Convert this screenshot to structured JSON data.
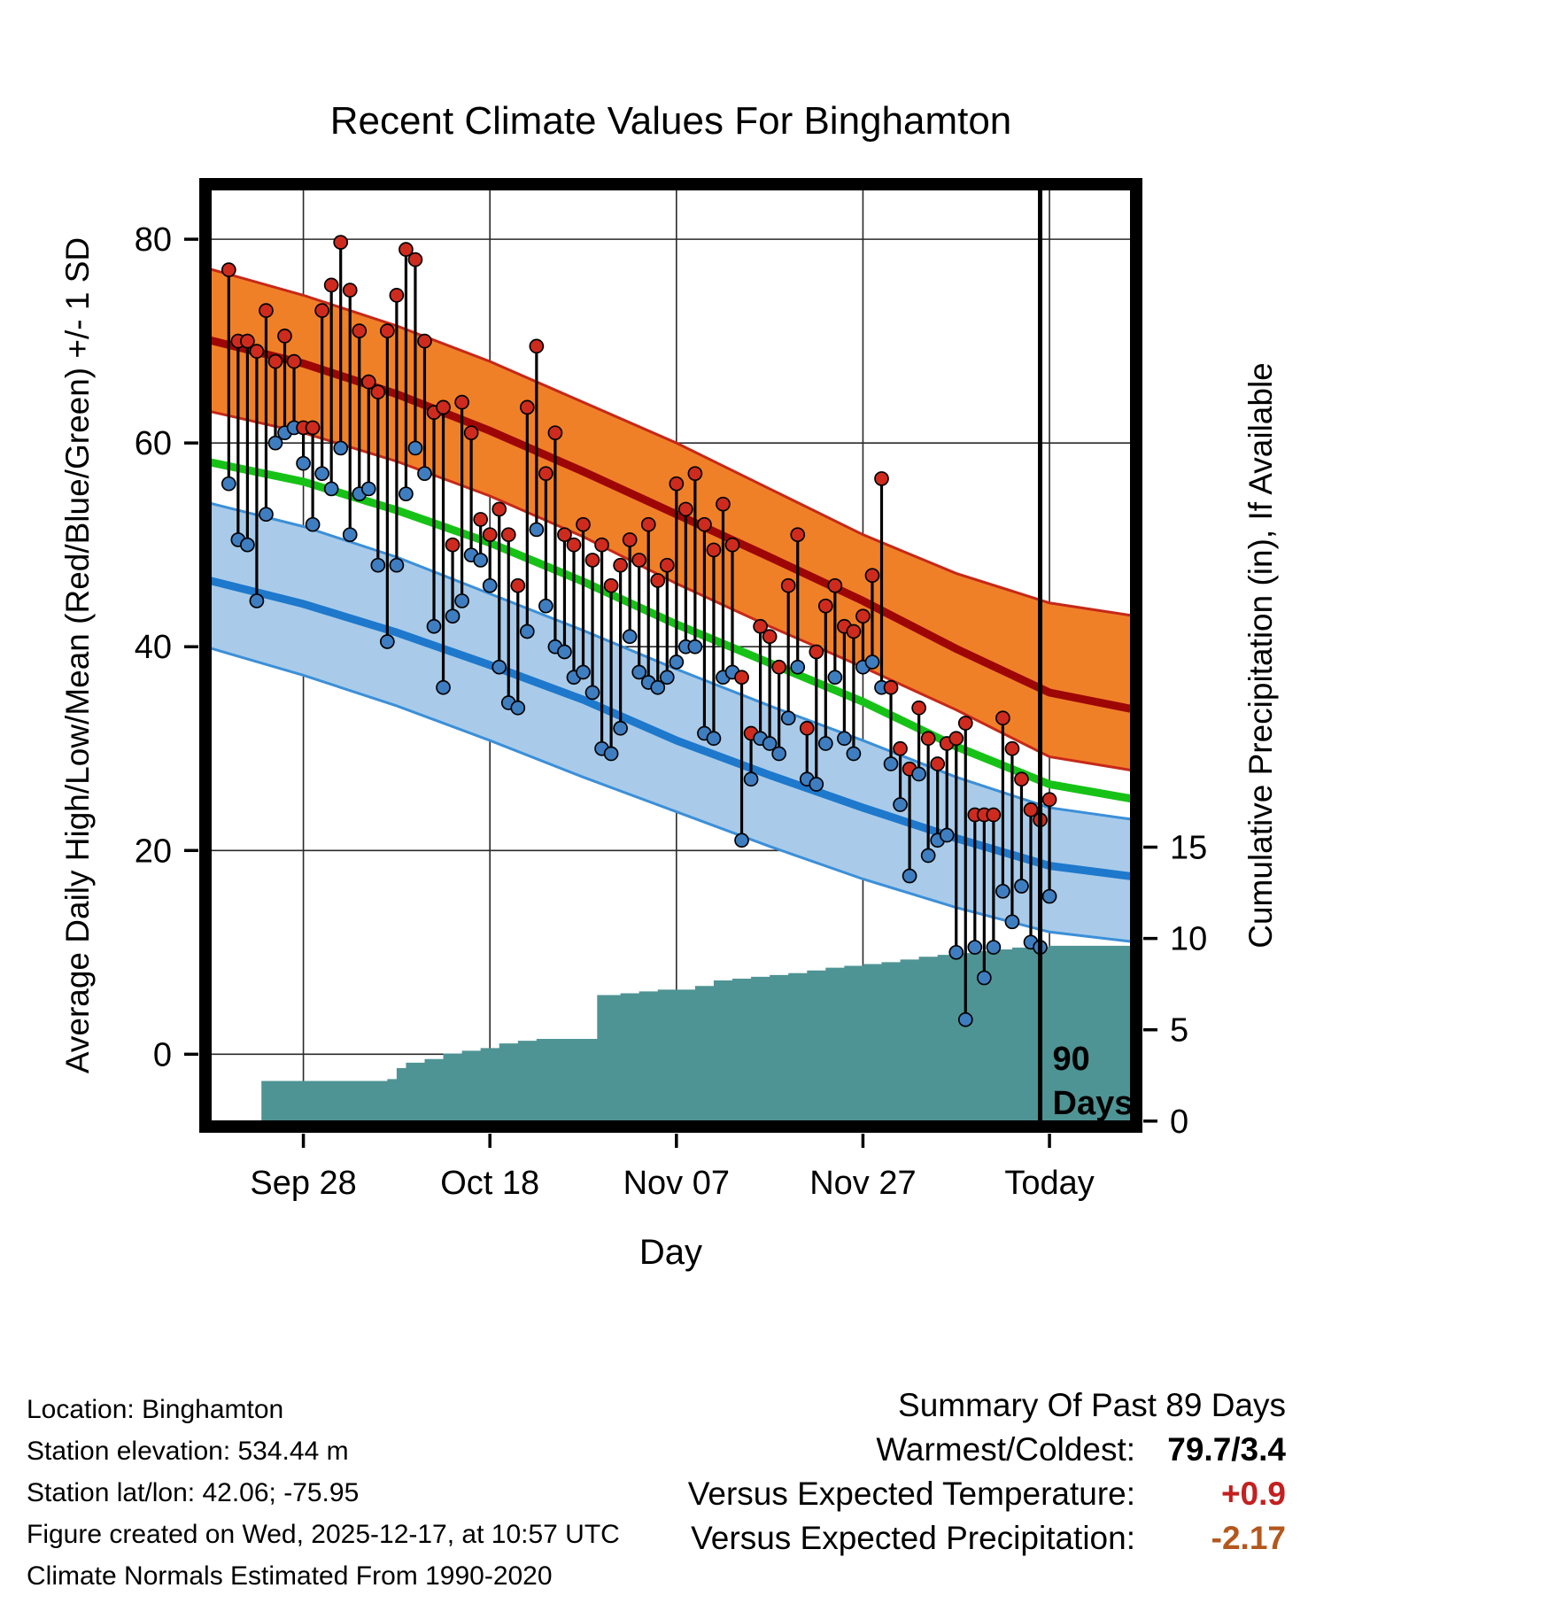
{
  "title": "Recent Climate Values For Binghamton",
  "axes": {
    "x_label": "Day",
    "y_left_label": "Average Daily High/Low/Mean (Red/Blue/Green) +/- 1 SD",
    "y_right_label": "Cumulative Precipitation (in), If Available"
  },
  "chart_data": {
    "type": "line",
    "title": "Recent Climate Values For Binghamton",
    "x_range": [
      -2.5,
      97.3
    ],
    "y_left_range": [
      -7.1,
      85.4
    ],
    "y_right_range": [
      -0.3,
      51.3
    ],
    "x_ticks": [
      {
        "day": 8,
        "label": "Sep 28"
      },
      {
        "day": 28,
        "label": "Oct 18"
      },
      {
        "day": 48,
        "label": "Nov 07"
      },
      {
        "day": 68,
        "label": "Nov 27"
      },
      {
        "day": 88,
        "label": "Today"
      }
    ],
    "y_left_ticks": [
      0,
      20,
      40,
      60,
      80
    ],
    "y_right_ticks": [
      0,
      5,
      10,
      15
    ],
    "grid": true,
    "normals": {
      "days": [
        -2.5,
        8,
        18,
        28,
        38,
        48,
        58,
        68,
        78,
        88,
        97.3
      ],
      "high_upper": [
        77.2,
        74.5,
        71.5,
        68,
        64,
        60,
        55.5,
        51,
        47.2,
        44.3,
        43
      ],
      "high_mean": [
        70.2,
        67.8,
        64.8,
        61.2,
        57.2,
        53,
        48.8,
        44.5,
        39.8,
        35.5,
        33.8
      ],
      "high_lower": [
        63.2,
        61,
        58.2,
        54.8,
        50.8,
        46.2,
        42,
        38,
        33.8,
        29.2,
        27.8
      ],
      "mean": [
        58.2,
        56.2,
        53.4,
        50.2,
        46.4,
        42.2,
        38.4,
        34.6,
        30.2,
        26.5,
        25
      ],
      "low_upper": [
        54.2,
        51.8,
        48.8,
        45.2,
        41.6,
        37.8,
        34.2,
        30.8,
        27.2,
        24.2,
        23
      ],
      "low_mean": [
        46.6,
        44.2,
        41.4,
        38.2,
        34.8,
        30.8,
        27.4,
        24.2,
        21.2,
        18.5,
        17.4
      ],
      "low_lower": [
        40,
        37.2,
        34.2,
        30.8,
        27.2,
        23.8,
        20.4,
        17.2,
        14.4,
        12,
        11
      ]
    },
    "daily": {
      "highs": [
        77,
        70,
        70,
        69,
        73,
        68,
        70.5,
        68,
        61.5,
        61.5,
        73,
        75.5,
        79.7,
        75,
        71,
        66,
        65,
        71,
        74.5,
        79,
        78,
        70,
        63,
        63.5,
        50,
        64,
        61,
        52.5,
        51,
        53.5,
        51,
        46,
        63.5,
        69.5,
        57,
        61,
        51,
        50,
        52,
        48.5,
        50,
        46,
        48,
        50.5,
        48.5,
        52,
        46.5,
        48,
        56,
        53.5,
        57,
        52,
        49.5,
        54,
        50,
        37,
        31.5,
        42,
        41,
        38,
        46,
        51,
        32,
        39.5,
        44,
        46,
        42,
        41.5,
        43,
        47,
        56.5,
        36,
        30,
        28,
        34,
        31,
        28.5,
        30.5,
        31,
        32.5,
        23.5,
        23.5,
        23.5,
        33,
        30,
        27,
        24,
        23,
        25
      ],
      "lows": [
        56,
        50.5,
        50,
        44.5,
        53,
        60,
        61,
        61.5,
        58,
        52,
        57,
        55.5,
        59.5,
        51,
        55,
        55.5,
        48,
        40.5,
        48,
        55,
        59.5,
        57,
        42,
        36,
        43,
        44.5,
        49,
        48.5,
        46,
        38,
        34.5,
        34,
        41.5,
        51.5,
        44,
        40,
        39.5,
        37,
        37.5,
        35.5,
        30,
        29.5,
        32,
        41,
        37.5,
        36.5,
        36,
        37,
        38.5,
        40,
        40,
        31.5,
        31,
        37,
        37.5,
        21,
        27,
        31,
        30.5,
        29.5,
        33,
        38,
        27,
        26.5,
        30.5,
        37,
        31,
        29.5,
        38,
        38.5,
        36,
        28.5,
        24.5,
        17.5,
        27.5,
        19.5,
        21,
        21.5,
        10,
        3.4,
        10.5,
        7.5,
        10.5,
        16,
        13,
        16.5,
        11,
        10.5,
        15.5
      ]
    },
    "precip": {
      "breakpoints": [
        [
          3.5,
          2.2
        ],
        [
          17,
          2.3
        ],
        [
          18,
          2.9
        ],
        [
          19,
          3.2
        ],
        [
          21,
          3.4
        ],
        [
          23,
          3.7
        ],
        [
          25,
          3.85
        ],
        [
          27,
          4.0
        ],
        [
          29,
          4.25
        ],
        [
          31,
          4.4
        ],
        [
          33,
          4.5
        ],
        [
          39.5,
          6.9
        ],
        [
          42,
          7.0
        ],
        [
          44,
          7.1
        ],
        [
          46,
          7.2
        ],
        [
          50,
          7.4
        ],
        [
          52,
          7.7
        ],
        [
          54,
          7.8
        ],
        [
          56,
          7.9
        ],
        [
          58,
          8.0
        ],
        [
          60,
          8.1
        ],
        [
          62,
          8.25
        ],
        [
          64,
          8.4
        ],
        [
          66,
          8.5
        ],
        [
          68,
          8.6
        ],
        [
          70,
          8.7
        ],
        [
          72,
          8.85
        ],
        [
          74,
          9.0
        ],
        [
          76,
          9.1
        ],
        [
          78,
          9.2
        ],
        [
          80,
          9.3
        ],
        [
          82,
          9.4
        ],
        [
          84,
          9.5
        ],
        [
          86,
          9.55
        ],
        [
          88,
          9.6
        ]
      ]
    },
    "annotation": {
      "day": 87,
      "lines": [
        "90",
        "Days"
      ]
    },
    "colors": {
      "high_band": "#f08028",
      "high_edge": "#c62818",
      "high_line": "#9e0606",
      "mean_line": "#17c217",
      "low_band": "#a9cbe9",
      "low_edge": "#3b8fd8",
      "low_line": "#1e78cc",
      "precip_fill": "#4f9494",
      "high_dot": "#ce2b1e",
      "low_dot": "#3e7ec0",
      "bar": "#000000",
      "grid": "#2a2a2a"
    }
  },
  "footer": {
    "lines": [
      "Location: Binghamton",
      "Station elevation: 534.44 m",
      "Station lat/lon: 42.06; -75.95",
      "Figure created on Wed, 2025-12-17, at 10:57 UTC",
      "Climate Normals Estimated From 1990-2020"
    ]
  },
  "summary": {
    "title": "Summary Of Past 89 Days",
    "rows": [
      {
        "label": "Warmest/Coldest:",
        "value": "79.7/3.4",
        "color": "#000000"
      },
      {
        "label": "Versus Expected Temperature:",
        "value": "+0.9",
        "color": "#c42020"
      },
      {
        "label": "Versus Expected Precipitation:",
        "value": "-2.17",
        "color": "#b4571e"
      }
    ]
  }
}
